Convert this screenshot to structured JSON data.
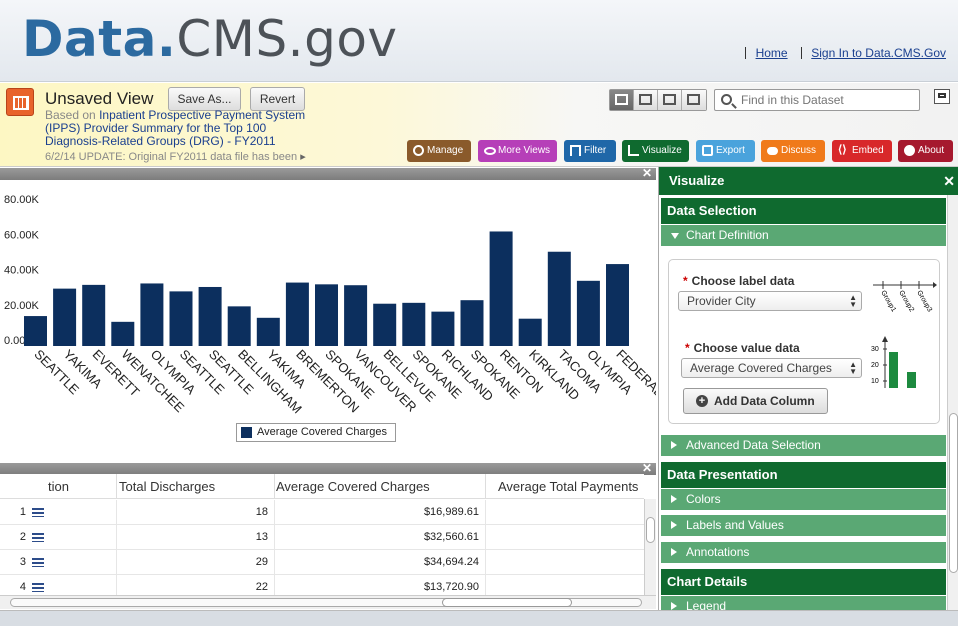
{
  "header": {
    "logo_part1": "Data.",
    "logo_part2": "CMS.gov",
    "links": [
      "Home",
      "Sign In to Data.CMS.Gov"
    ]
  },
  "view": {
    "title": "Unsaved View",
    "save_as": "Save As...",
    "revert": "Revert",
    "based_on_prefix": "Based on",
    "dataset_name": "Inpatient Prospective Payment System (IPPS) Provider Summary for the Top 100 Diagnosis-Related Groups (DRG) - FY2011",
    "update_note": "6/2/14 UPDATE: Original FY2011 data file has been"
  },
  "search": {
    "placeholder": "Find in this Dataset"
  },
  "actions": [
    {
      "label": "Manage",
      "color": "#8a5a2b",
      "icon": "gear-icon"
    },
    {
      "label": "More Views",
      "color": "#b63fb8",
      "icon": "binoculars-icon"
    },
    {
      "label": "Filter",
      "color": "#1f67a8",
      "icon": "filter-icon"
    },
    {
      "label": "Visualize",
      "color": "#0f6a2f",
      "icon": "chart-icon"
    },
    {
      "label": "Export",
      "color": "#4aa3dc",
      "icon": "export-icon"
    },
    {
      "label": "Discuss",
      "color": "#f07a1a",
      "icon": "speech-bubble-icon"
    },
    {
      "label": "Embed",
      "color": "#d8282a",
      "icon": "code-icon"
    },
    {
      "label": "About",
      "color": "#a6192e",
      "icon": "info-icon"
    }
  ],
  "chart_data": {
    "type": "bar",
    "categories": [
      "SEATTLE",
      "YAKIMA",
      "EVERETT",
      "WENATCHEE",
      "OLYMPIA",
      "SEATTLE",
      "SEATTLE",
      "BELLINGHAM",
      "YAKIMA",
      "BREMERTON",
      "SPOKANE",
      "VANCOUVER",
      "BELLEVUE",
      "SPOKANE",
      "RICHLAND",
      "SPOKANE",
      "RENTON",
      "KIRKLAND",
      "TACOMA",
      "OLYMPIA",
      "FEDERAL"
    ],
    "series": [
      {
        "name": "Average Covered Charges",
        "values": [
          16989.61,
          32560.61,
          34694.24,
          13720.9,
          35500,
          31000,
          33500,
          22500,
          16000,
          36000,
          35000,
          34500,
          24000,
          24500,
          19500,
          26000,
          65000,
          15500,
          53500,
          37000,
          46500
        ]
      }
    ],
    "ytick_labels": [
      "0.00",
      "20.00K",
      "40.00K",
      "60.00K",
      "80.00K"
    ],
    "ylim": [
      0,
      84000
    ],
    "legend": "bottom",
    "bar_color": "#0c2f5e",
    "grid": false
  },
  "table": {
    "columns": [
      "tion",
      "Total Discharges",
      "Average Covered Charges",
      "Average Total Payments"
    ],
    "rows": [
      {
        "num": "1",
        "discharges": "18",
        "charges": "$16,989.61"
      },
      {
        "num": "2",
        "discharges": "13",
        "charges": "$32,560.61"
      },
      {
        "num": "3",
        "discharges": "29",
        "charges": "$34,694.24"
      },
      {
        "num": "4",
        "discharges": "22",
        "charges": "$13,720.90"
      }
    ]
  },
  "sidebar": {
    "title": "Visualize",
    "data_selection": "Data Selection",
    "chart_definition": "Chart Definition",
    "label_field_label": "Choose label data",
    "label_field_value": "Provider City",
    "value_field_label": "Choose value data",
    "value_field_value": "Average Covered Charges",
    "add_column": "Add Data Column",
    "label_hint": [
      "Group1",
      "Group2",
      "Group3"
    ],
    "value_hint": [
      "30",
      "20",
      "10"
    ],
    "advanced": "Advanced Data Selection",
    "data_presentation": "Data Presentation",
    "colors": "Colors",
    "labels_values": "Labels and Values",
    "annotations": "Annotations",
    "chart_details": "Chart Details",
    "legend": "Legend"
  }
}
